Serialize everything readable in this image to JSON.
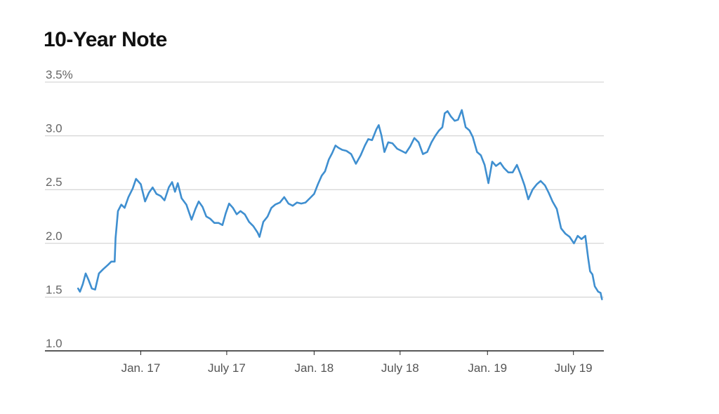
{
  "chart_data": {
    "type": "line",
    "title": "10-Year Note",
    "xlabel": "",
    "ylabel": "",
    "ylim": [
      1.0,
      3.5
    ],
    "y_ticks": [
      1.0,
      1.5,
      2.0,
      2.5,
      3.0,
      3.5
    ],
    "y_tick_labels": [
      "1.0",
      "1.5",
      "2.0",
      "2.5",
      "3.0",
      "3.5%"
    ],
    "x_ticks": [
      "2017-01-01",
      "2017-07-01",
      "2018-01-01",
      "2018-07-01",
      "2019-01-01",
      "2019-07-01"
    ],
    "x_tick_labels": [
      "Jan. 17",
      "July 17",
      "Jan. 18",
      "July 18",
      "Jan. 19",
      "July 19"
    ],
    "x_range": [
      "2016-07-01",
      "2019-09-03"
    ],
    "grid": true,
    "colors": {
      "line": "#3f8fd0",
      "grid": "#cccccc",
      "axis": "#222222"
    },
    "series": [
      {
        "x": [
          "2016-08-22",
          "2016-08-26",
          "2016-09-01",
          "2016-09-07",
          "2016-09-13",
          "2016-09-20",
          "2016-09-27",
          "2016-10-05",
          "2016-10-14",
          "2016-10-24",
          "2016-10-31",
          "2016-11-07",
          "2016-11-09",
          "2016-11-14",
          "2016-11-21",
          "2016-11-28",
          "2016-12-06",
          "2016-12-15",
          "2016-12-22",
          "2017-01-01",
          "2017-01-10",
          "2017-01-18",
          "2017-01-26",
          "2017-02-03",
          "2017-02-12",
          "2017-02-20",
          "2017-03-01",
          "2017-03-08",
          "2017-03-14",
          "2017-03-20",
          "2017-03-28",
          "2017-04-07",
          "2017-04-18",
          "2017-04-26",
          "2017-05-03",
          "2017-05-11",
          "2017-05-19",
          "2017-05-27",
          "2017-06-05",
          "2017-06-14",
          "2017-06-22",
          "2017-06-29",
          "2017-07-06",
          "2017-07-14",
          "2017-07-22",
          "2017-07-30",
          "2017-08-08",
          "2017-08-17",
          "2017-08-26",
          "2017-09-04",
          "2017-09-08",
          "2017-09-16",
          "2017-09-25",
          "2017-10-03",
          "2017-10-11",
          "2017-10-21",
          "2017-10-30",
          "2017-11-08",
          "2017-11-17",
          "2017-11-26",
          "2017-12-05",
          "2017-12-14",
          "2017-12-23",
          "2018-01-01",
          "2018-01-09",
          "2018-01-17",
          "2018-01-24",
          "2018-02-01",
          "2018-02-08",
          "2018-02-15",
          "2018-02-21",
          "2018-03-01",
          "2018-03-10",
          "2018-03-20",
          "2018-03-30",
          "2018-04-09",
          "2018-04-18",
          "2018-04-25",
          "2018-05-03",
          "2018-05-12",
          "2018-05-17",
          "2018-05-23",
          "2018-05-29",
          "2018-06-06",
          "2018-06-15",
          "2018-06-25",
          "2018-07-04",
          "2018-07-13",
          "2018-07-22",
          "2018-07-31",
          "2018-08-09",
          "2018-08-18",
          "2018-08-27",
          "2018-09-05",
          "2018-09-13",
          "2018-09-21",
          "2018-09-28",
          "2018-10-03",
          "2018-10-09",
          "2018-10-16",
          "2018-10-24",
          "2018-10-31",
          "2018-11-08",
          "2018-11-16",
          "2018-11-24",
          "2018-12-01",
          "2018-12-10",
          "2018-12-18",
          "2018-12-26",
          "2019-01-03",
          "2019-01-11",
          "2019-01-19",
          "2019-01-28",
          "2019-02-05",
          "2019-02-14",
          "2019-02-23",
          "2019-03-04",
          "2019-03-12",
          "2019-03-20",
          "2019-03-28",
          "2019-04-06",
          "2019-04-15",
          "2019-04-23",
          "2019-05-02",
          "2019-05-10",
          "2019-05-18",
          "2019-05-27",
          "2019-06-05",
          "2019-06-14",
          "2019-06-23",
          "2019-07-02",
          "2019-07-10",
          "2019-07-18",
          "2019-07-26",
          "2019-08-01",
          "2019-08-05",
          "2019-08-10",
          "2019-08-15",
          "2019-08-22",
          "2019-08-27",
          "2019-08-30"
        ],
        "values": [
          1.58,
          1.55,
          1.62,
          1.72,
          1.66,
          1.58,
          1.57,
          1.72,
          1.76,
          1.8,
          1.83,
          1.83,
          2.05,
          2.3,
          2.36,
          2.33,
          2.43,
          2.51,
          2.6,
          2.55,
          2.39,
          2.47,
          2.52,
          2.46,
          2.44,
          2.4,
          2.52,
          2.57,
          2.48,
          2.56,
          2.42,
          2.36,
          2.22,
          2.32,
          2.39,
          2.34,
          2.25,
          2.23,
          2.19,
          2.19,
          2.17,
          2.28,
          2.37,
          2.33,
          2.27,
          2.3,
          2.27,
          2.2,
          2.16,
          2.1,
          2.06,
          2.2,
          2.25,
          2.33,
          2.36,
          2.38,
          2.43,
          2.37,
          2.35,
          2.38,
          2.37,
          2.38,
          2.42,
          2.46,
          2.55,
          2.63,
          2.67,
          2.78,
          2.84,
          2.91,
          2.89,
          2.87,
          2.86,
          2.83,
          2.74,
          2.82,
          2.91,
          2.97,
          2.96,
          3.06,
          3.1,
          3.0,
          2.85,
          2.94,
          2.93,
          2.88,
          2.86,
          2.84,
          2.9,
          2.98,
          2.94,
          2.83,
          2.85,
          2.94,
          3.0,
          3.05,
          3.08,
          3.21,
          3.23,
          3.18,
          3.14,
          3.15,
          3.24,
          3.08,
          3.05,
          2.99,
          2.85,
          2.82,
          2.73,
          2.56,
          2.76,
          2.72,
          2.75,
          2.7,
          2.66,
          2.66,
          2.73,
          2.64,
          2.54,
          2.41,
          2.5,
          2.55,
          2.58,
          2.54,
          2.47,
          2.39,
          2.32,
          2.14,
          2.09,
          2.06,
          2.0,
          2.07,
          2.04,
          2.07,
          1.86,
          1.74,
          1.71,
          1.6,
          1.55,
          1.54,
          1.48
        ]
      }
    ]
  }
}
